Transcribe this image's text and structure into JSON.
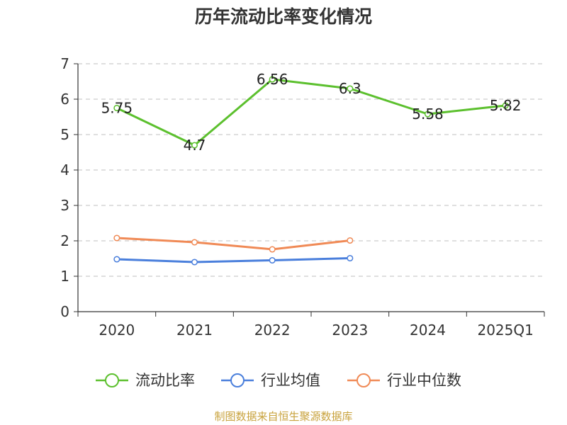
{
  "chart_data": {
    "type": "line",
    "title": "历年流动比率变化情况",
    "categories": [
      "2020",
      "2021",
      "2022",
      "2023",
      "2024",
      "2025Q1"
    ],
    "ylim": [
      0,
      7
    ],
    "yticks": [
      "0",
      "1",
      "2",
      "3",
      "4",
      "5",
      "6",
      "7"
    ],
    "grid": "horizontal-dashed",
    "legend_position": "bottom-center",
    "series": [
      {
        "name": "流动比率",
        "color": "#5cc02e",
        "values": [
          5.75,
          4.7,
          6.56,
          6.3,
          5.58,
          5.82
        ],
        "labels": [
          "5.75",
          "4.7",
          "6.56",
          "6.3",
          "5.58",
          "5.82"
        ]
      },
      {
        "name": "行业均值",
        "color": "#4a7fdc",
        "values": [
          1.48,
          1.4,
          1.45,
          1.51,
          null,
          null
        ]
      },
      {
        "name": "行业中位数",
        "color": "#f08a56",
        "values": [
          2.08,
          1.96,
          1.76,
          2.01,
          null,
          null
        ]
      }
    ]
  },
  "footer": {
    "source": "制图数据来自恒生聚源数据库"
  }
}
